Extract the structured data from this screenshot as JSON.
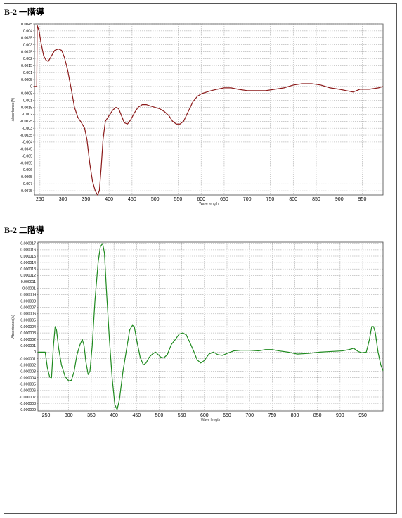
{
  "charts": [
    {
      "heading": "B-2 一階導",
      "chart_data": {
        "type": "line",
        "xlabel": "Wave length",
        "ylabel": "Absorbance(A)",
        "xlim": [
          238,
          995
        ],
        "ylim": [
          -0.0078,
          0.0045
        ],
        "grid": true,
        "x_ticks": [
          "250",
          "300",
          "350",
          "400",
          "450",
          "500",
          "550",
          "600",
          "650",
          "700",
          "750",
          "800",
          "850",
          "900",
          "950"
        ],
        "y_ticks": [
          "0.0045",
          "0.004",
          "0.0035",
          "0.003",
          "0.0025",
          "0.002",
          "0.0015",
          "0.001",
          "0.0005",
          "0",
          "-0.0005",
          "-0.001",
          "-0.0015",
          "-0.002",
          "-0.0025",
          "-0.003",
          "-0.0035",
          "-0.004",
          "-0.0045",
          "-0.005",
          "-0.0055",
          "-0.006",
          "-0.0065",
          "-0.007",
          "-0.0075"
        ],
        "series": [
          {
            "color": "#8b1a1a",
            "points": [
              [
                238,
                0
              ],
              [
                243,
                0
              ],
              [
                244,
                0.0044
              ],
              [
                248,
                0.004
              ],
              [
                252,
                0.0032
              ],
              [
                258,
                0.0022
              ],
              [
                263,
                0.0019
              ],
              [
                268,
                0.0018
              ],
              [
                275,
                0.0022
              ],
              [
                282,
                0.0026
              ],
              [
                290,
                0.0027
              ],
              [
                297,
                0.0026
              ],
              [
                303,
                0.0021
              ],
              [
                310,
                0.0012
              ],
              [
                318,
                -0.0002
              ],
              [
                325,
                -0.0015
              ],
              [
                332,
                -0.0022
              ],
              [
                340,
                -0.0026
              ],
              [
                347,
                -0.003
              ],
              [
                352,
                -0.0038
              ],
              [
                358,
                -0.0055
              ],
              [
                364,
                -0.0068
              ],
              [
                370,
                -0.0075
              ],
              [
                375,
                -0.0078
              ],
              [
                379,
                -0.0075
              ],
              [
                383,
                -0.0058
              ],
              [
                387,
                -0.0038
              ],
              [
                392,
                -0.0025
              ],
              [
                400,
                -0.0021
              ],
              [
                408,
                -0.0017
              ],
              [
                415,
                -0.0015
              ],
              [
                421,
                -0.0016
              ],
              [
                427,
                -0.0021
              ],
              [
                433,
                -0.0026
              ],
              [
                440,
                -0.0027
              ],
              [
                447,
                -0.0024
              ],
              [
                455,
                -0.0019
              ],
              [
                463,
                -0.0015
              ],
              [
                472,
                -0.0013
              ],
              [
                481,
                -0.0013
              ],
              [
                490,
                -0.0014
              ],
              [
                500,
                -0.0015
              ],
              [
                510,
                -0.0016
              ],
              [
                520,
                -0.0018
              ],
              [
                530,
                -0.0021
              ],
              [
                538,
                -0.0025
              ],
              [
                546,
                -0.0027
              ],
              [
                554,
                -0.0027
              ],
              [
                562,
                -0.0025
              ],
              [
                572,
                -0.0018
              ],
              [
                582,
                -0.0011
              ],
              [
                592,
                -0.0007
              ],
              [
                602,
                -0.0005
              ],
              [
                612,
                -0.0004
              ],
              [
                622,
                -0.0003
              ],
              [
                635,
                -0.0002
              ],
              [
                650,
                -0.0001
              ],
              [
                665,
                -0.0001
              ],
              [
                680,
                -0.0002
              ],
              [
                700,
                -0.0003
              ],
              [
                720,
                -0.0003
              ],
              [
                740,
                -0.0003
              ],
              [
                760,
                -0.0002
              ],
              [
                780,
                -0.0001
              ],
              [
                800,
                0.0001
              ],
              [
                820,
                0.0002
              ],
              [
                840,
                0.0002
              ],
              [
                860,
                0.0001
              ],
              [
                880,
                -0.0001
              ],
              [
                900,
                -0.0002
              ],
              [
                915,
                -0.0003
              ],
              [
                930,
                -0.0004
              ],
              [
                945,
                -0.0002
              ],
              [
                965,
                -0.0002
              ],
              [
                985,
                -0.0001
              ],
              [
                995,
                0
              ]
            ]
          }
        ]
      }
    },
    {
      "heading": "B-2 二階導",
      "chart_data": {
        "type": "line",
        "xlabel": "Wave length",
        "ylabel": "Absorbance(A)",
        "xlim": [
          232,
          995
        ],
        "ylim": [
          -9.2e-06,
          1.72e-05
        ],
        "grid": true,
        "x_ticks": [
          "250",
          "300",
          "350",
          "400",
          "450",
          "500",
          "550",
          "600",
          "650",
          "700",
          "750",
          "800",
          "850",
          "900",
          "950"
        ],
        "y_ticks": [
          "0.000017",
          "0.000016",
          "0.000015",
          "0.000014",
          "0.000013",
          "0.000012",
          "0.000011",
          "0.00001",
          "0.000009",
          "0.000008",
          "0.000007",
          "0.000006",
          "0.000005",
          "0.000004",
          "0.000003",
          "0.000002",
          "0.000001",
          "0",
          "-0.000001",
          "-0.000002",
          "-0.000003",
          "-0.000004",
          "-0.000005",
          "-0.000006",
          "-0.000007",
          "-0.000008",
          "-0.000009"
        ],
        "series": [
          {
            "color": "#1f8a1f",
            "points": [
              [
                232,
                0
              ],
              [
                248,
                0
              ],
              [
                253,
                -2.5e-06
              ],
              [
                258,
                -3.9e-06
              ],
              [
                262,
                -4e-06
              ],
              [
                266,
                8e-07
              ],
              [
                270,
                4e-06
              ],
              [
                273,
                3.5e-06
              ],
              [
                278,
                5e-07
              ],
              [
                284,
                -2e-06
              ],
              [
                292,
                -3.8e-06
              ],
              [
                300,
                -4.5e-06
              ],
              [
                306,
                -4.4e-06
              ],
              [
                312,
                -3e-06
              ],
              [
                318,
                -5e-07
              ],
              [
                324,
                1e-06
              ],
              [
                330,
                2e-06
              ],
              [
                334,
                1e-06
              ],
              [
                338,
                -1.5e-06
              ],
              [
                343,
                -3.5e-06
              ],
              [
                347,
                -3e-06
              ],
              [
                352,
                1e-06
              ],
              [
                358,
                8e-06
              ],
              [
                365,
                1.4e-05
              ],
              [
                370,
                1.65e-05
              ],
              [
                375,
                1.7e-05
              ],
              [
                379,
                1.55e-05
              ],
              [
                384,
                9e-06
              ],
              [
                390,
                2e-06
              ],
              [
                396,
                -4e-06
              ],
              [
                402,
                -8.2e-06
              ],
              [
                407,
                -9e-06
              ],
              [
                412,
                -7.5e-06
              ],
              [
                420,
                -3e-06
              ],
              [
                428,
                5e-07
              ],
              [
                435,
                3.5e-06
              ],
              [
                441,
                4.2e-06
              ],
              [
                445,
                4e-06
              ],
              [
                450,
                2e-06
              ],
              [
                458,
                -8e-07
              ],
              [
                465,
                -2e-06
              ],
              [
                471,
                -1.7e-06
              ],
              [
                478,
                -8e-07
              ],
              [
                485,
                -3e-07
              ],
              [
                492,
                0
              ],
              [
                498,
                -4e-07
              ],
              [
                504,
                -8e-07
              ],
              [
                510,
                -9e-07
              ],
              [
                518,
                -4e-07
              ],
              [
                527,
                1.2e-06
              ],
              [
                536,
                2e-06
              ],
              [
                544,
                2.8e-06
              ],
              [
                552,
                3e-06
              ],
              [
                560,
                2.7e-06
              ],
              [
                568,
                1.5e-06
              ],
              [
                576,
                2e-07
              ],
              [
                584,
                -1.2e-06
              ],
              [
                592,
                -1.7e-06
              ],
              [
                600,
                -1.3e-06
              ],
              [
                610,
                -3e-07
              ],
              [
                620,
                0
              ],
              [
                630,
                -4e-07
              ],
              [
                640,
                -5e-07
              ],
              [
                650,
                -2e-07
              ],
              [
                665,
                2e-07
              ],
              [
                680,
                3e-07
              ],
              [
                700,
                3e-07
              ],
              [
                720,
                2e-07
              ],
              [
                735,
                4e-07
              ],
              [
                750,
                4e-07
              ],
              [
                765,
                2e-07
              ],
              [
                785,
                0
              ],
              [
                805,
                -3e-07
              ],
              [
                830,
                -2e-07
              ],
              [
                855,
                0
              ],
              [
                880,
                1e-07
              ],
              [
                905,
                2e-07
              ],
              [
                920,
                4e-07
              ],
              [
                930,
                6e-07
              ],
              [
                940,
                1e-07
              ],
              [
                948,
                -1e-07
              ],
              [
                958,
                0
              ],
              [
                965,
                2e-06
              ],
              [
                970,
                4e-06
              ],
              [
                974,
                4e-06
              ],
              [
                978,
                3e-06
              ],
              [
                984,
                0
              ],
              [
                990,
                -2e-06
              ],
              [
                995,
                -2.9e-06
              ]
            ]
          }
        ]
      }
    }
  ]
}
